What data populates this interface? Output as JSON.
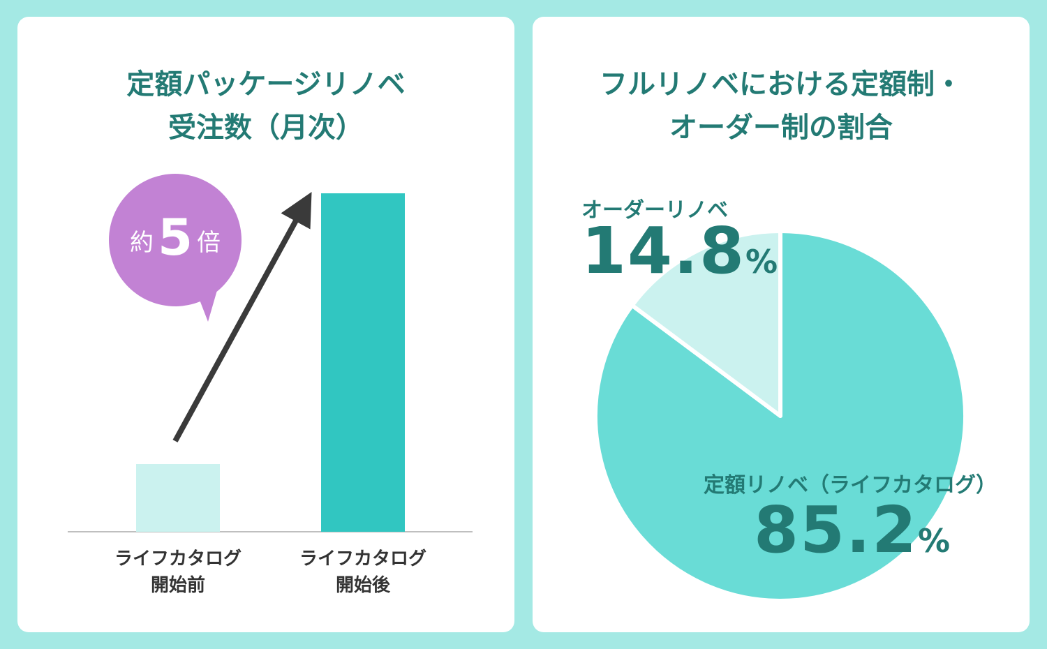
{
  "colors": {
    "background": "#a4e9e4",
    "panel": "#ffffff",
    "title_text": "#237a74",
    "bar_before": "#cbf2ef",
    "bar_after": "#31c6c1",
    "pie_fixed": "#69dcd6",
    "pie_order": "#cbf2ef",
    "bubble": "#c282d4",
    "arrow": "#3a3a3a",
    "axis": "#aaaaaa"
  },
  "left_panel": {
    "title_lines": [
      "定額パッケージリノベ",
      "受注数（月次）"
    ],
    "bubble": {
      "pre": "約",
      "number": "5",
      "post": "倍"
    },
    "arrow_icon": "up-right-arrow"
  },
  "right_panel": {
    "title_lines": [
      "フルリノベにおける定額制・",
      "オーダー制の割合"
    ]
  },
  "chart_data": [
    {
      "type": "bar",
      "title": "定額パッケージリノベ受注数（月次）",
      "categories": [
        [
          "ライフカタログ",
          "開始前"
        ],
        [
          "ライフカタログ",
          "開始後"
        ]
      ],
      "values": [
        1,
        5
      ],
      "annotation": "約5倍"
    },
    {
      "type": "pie",
      "title": "フルリノベにおける定額制・オーダー制の割合",
      "slices": [
        {
          "label": "オーダーリノベ",
          "value": 14.8,
          "display": "14.8",
          "unit": "%"
        },
        {
          "label": "定額リノベ（ライフカタログ）",
          "value": 85.2,
          "display": "85.2",
          "unit": "%"
        }
      ]
    }
  ]
}
